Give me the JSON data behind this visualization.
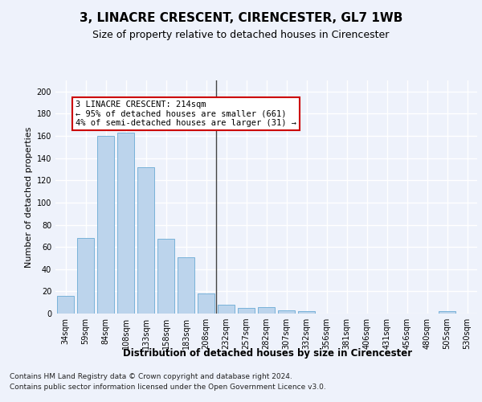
{
  "title": "3, LINACRE CRESCENT, CIRENCESTER, GL7 1WB",
  "subtitle": "Size of property relative to detached houses in Cirencester",
  "xlabel": "Distribution of detached houses by size in Cirencester",
  "ylabel": "Number of detached properties",
  "footer_line1": "Contains HM Land Registry data © Crown copyright and database right 2024.",
  "footer_line2": "Contains public sector information licensed under the Open Government Licence v3.0.",
  "categories": [
    "34sqm",
    "59sqm",
    "84sqm",
    "108sqm",
    "133sqm",
    "158sqm",
    "183sqm",
    "208sqm",
    "232sqm",
    "257sqm",
    "282sqm",
    "307sqm",
    "332sqm",
    "356sqm",
    "381sqm",
    "406sqm",
    "431sqm",
    "456sqm",
    "480sqm",
    "505sqm",
    "530sqm"
  ],
  "values": [
    16,
    68,
    160,
    163,
    132,
    67,
    51,
    18,
    8,
    5,
    6,
    3,
    2,
    0,
    0,
    0,
    0,
    0,
    0,
    2,
    0
  ],
  "bar_color": "#bcd4ec",
  "bar_edge_color": "#6aaad4",
  "vline_color": "#444444",
  "annotation_text": "3 LINACRE CRESCENT: 214sqm\n← 95% of detached houses are smaller (661)\n4% of semi-detached houses are larger (31) →",
  "annotation_box_color": "#ffffff",
  "annotation_box_edge_color": "#cc0000",
  "ylim": [
    0,
    210
  ],
  "yticks": [
    0,
    20,
    40,
    60,
    80,
    100,
    120,
    140,
    160,
    180,
    200
  ],
  "background_color": "#eef2fb",
  "grid_color": "#ffffff",
  "title_fontsize": 11,
  "subtitle_fontsize": 9,
  "ylabel_fontsize": 8,
  "xlabel_fontsize": 8.5,
  "tick_fontsize": 7,
  "footer_fontsize": 6.5,
  "annotation_fontsize": 7.5,
  "vline_x_index": 7
}
